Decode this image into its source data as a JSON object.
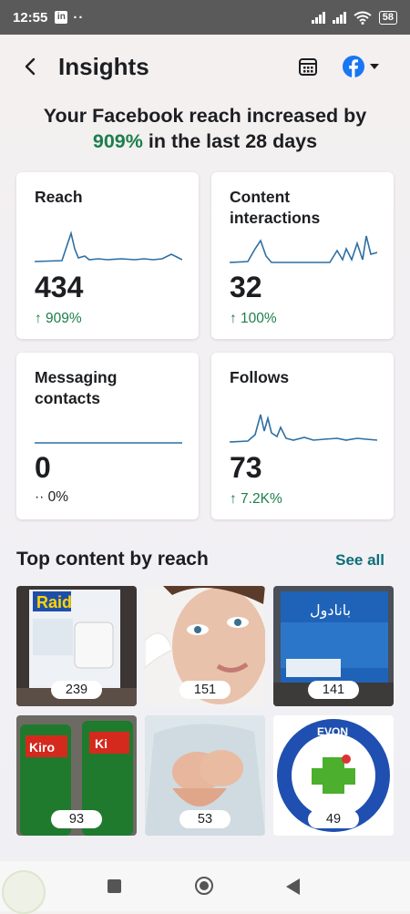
{
  "status_bar": {
    "time": "12:55",
    "battery": "58"
  },
  "header": {
    "title": "Insights"
  },
  "headline": {
    "line1": "Your Facebook reach increased by",
    "pct": "909%",
    "line2": " in the last 28 days"
  },
  "cards": [
    {
      "label_line1": "Reach",
      "label_line2": "",
      "value": "434",
      "change": "↑ 909%"
    },
    {
      "label_line1": "Content",
      "label_line2": "interactions",
      "value": "32",
      "change": "↑ 100%"
    },
    {
      "label_line1": "Messaging",
      "label_line2": "contacts",
      "value": "0",
      "change": "·· 0%"
    },
    {
      "label_line1": "Follows",
      "label_line2": "",
      "value": "73",
      "change": "↑ 7.2K%"
    }
  ],
  "top_content": {
    "title": "Top content by reach",
    "see_all": "See all",
    "items": [
      {
        "count": "239"
      },
      {
        "count": "151"
      },
      {
        "count": "141"
      },
      {
        "count": "93"
      },
      {
        "count": "53"
      },
      {
        "count": "49"
      }
    ]
  },
  "colors": {
    "accent_green": "#1a7f4b",
    "spark_line": "#2d6fa3",
    "link_teal": "#0b6e7a",
    "facebook_blue": "#1877f2"
  }
}
